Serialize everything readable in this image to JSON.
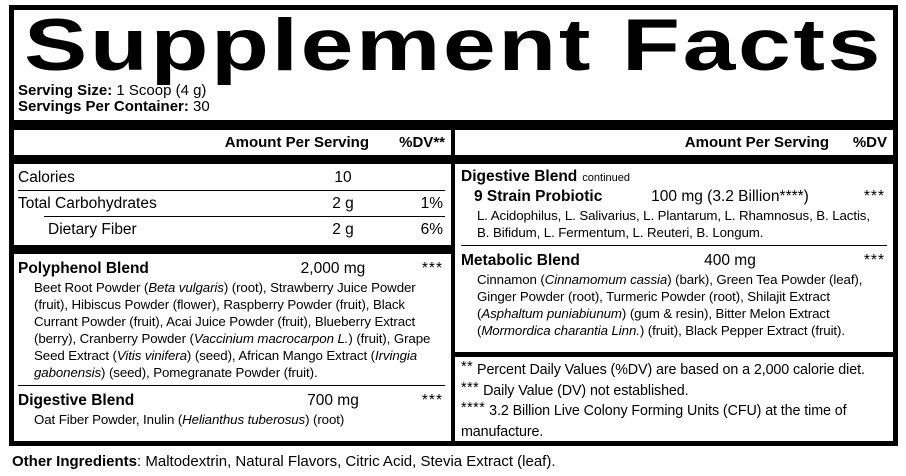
{
  "title": "Supplement Facts",
  "serving": {
    "size_label": "Serving Size:",
    "size_value": " 1 Scoop (4 g)",
    "container_label": "Servings Per Container:",
    "container_value": " 30"
  },
  "left": {
    "header": {
      "amount": "Amount Per Serving",
      "dv": "%DV**"
    },
    "rows": [
      {
        "name": "Calories",
        "amount": "10",
        "dv": ""
      },
      {
        "name": "Total Carbohydrates",
        "amount": "2 g",
        "dv": "1%"
      },
      {
        "name": "Dietary Fiber",
        "amount": "2 g",
        "dv": "6%"
      }
    ],
    "polyphenol": {
      "name": "Polyphenol Blend",
      "amount": "2,000 mg",
      "dv": "***",
      "desc": [
        {
          "t": "Beet Root Powder ("
        },
        {
          "t": "Beta vulgaris",
          "i": true
        },
        {
          "t": ") (root), Strawberry Juice Powder (fruit), Hibiscus Powder (flower), Raspberry Powder (fruit), Black Currant Powder (fruit), Acai Juice Powder (fruit), Blueberry Extract (berry), Cranberry Powder ("
        },
        {
          "t": "Vaccinium macrocarpon L.",
          "i": true
        },
        {
          "t": ") (fruit), Grape Seed Extract ("
        },
        {
          "t": "Vitis vinifera",
          "i": true
        },
        {
          "t": ") (seed), African Mango Extract ("
        },
        {
          "t": "Irvingia gabonensis",
          "i": true
        },
        {
          "t": ") (seed), Pomegranate Powder (fruit)."
        }
      ]
    },
    "digestive": {
      "name": "Digestive Blend",
      "amount": "700 mg",
      "dv": "***",
      "desc": [
        {
          "t": "Oat Fiber Powder, Inulin ("
        },
        {
          "t": "Helianthus tuberosus",
          "i": true
        },
        {
          "t": ") (root)"
        }
      ]
    }
  },
  "right": {
    "header": {
      "amount": "Amount Per Serving",
      "dv": "%DV"
    },
    "digestive_continued": {
      "name": "Digestive Blend",
      "continued": "continued",
      "sub_name": "9 Strain Probiotic",
      "amount": "100 mg (3.2 Billion****)",
      "dv": "***",
      "desc": [
        {
          "t": "L. Acidophilus, L. Salivarius, L. Plantarum, L. Rhamnosus, B. Lactis, B. Bifidum, L. Fermentum, L. Reuteri, B. Longum."
        }
      ]
    },
    "metabolic": {
      "name": "Metabolic Blend",
      "amount": "400 mg",
      "dv": "***",
      "desc": [
        {
          "t": "Cinnamon ("
        },
        {
          "t": "Cinnamomum cassia",
          "i": true
        },
        {
          "t": ") (bark), Green Tea Powder (leaf), Ginger Powder (root), Turmeric Powder (root), Shilajit Extract ("
        },
        {
          "t": "Asphaltum puniabiunum",
          "i": true
        },
        {
          "t": ") (gum & resin), Bitter Melon Extract ("
        },
        {
          "t": "Mormordica charantia Linn.",
          "i": true
        },
        {
          "t": ") (fruit), Black Pepper Extract (fruit)."
        }
      ]
    },
    "footnotes": [
      {
        "sym": "**",
        "text": "Percent Daily Values (%DV) are based on a 2,000 calorie diet."
      },
      {
        "sym": "***",
        "text": "Daily Value (DV) not established."
      },
      {
        "sym": "****",
        "text": "3.2 Billion Live Colony Forming Units (CFU) at the time of manufacture."
      }
    ]
  },
  "other_ingredients": {
    "label": "Other Ingredients",
    "text": ": Maltodextrin, Natural Flavors, Citric Acid, Stevia Extract (leaf)."
  },
  "colors": {
    "ink": "#000000",
    "background": "#ffffff"
  }
}
